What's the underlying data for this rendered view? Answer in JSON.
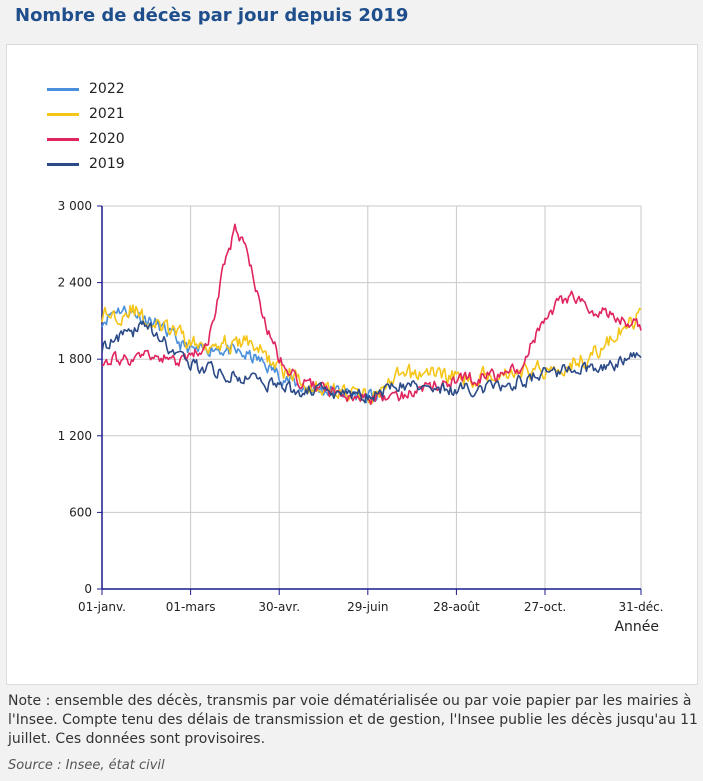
{
  "page": {
    "title": "Nombre de décès par jour depuis 2019",
    "note": "Note : ensemble des décès, transmis par voie dématérialisée ou par voie papier par les mairies à l'Insee. Compte tenu des délais de transmission et de gestion, l'Insee publie les décès jusqu'au 11 juillet. Ces données sont provisoires.",
    "source": "Source : Insee, état civil"
  },
  "colors": {
    "2022": "#4a8fdc",
    "2021": "#f5c518",
    "2020": "#e0245e",
    "2019": "#2b4a87",
    "axis": "#1a1a8c",
    "grid": "#c8c8c8"
  },
  "chart_data": {
    "type": "line",
    "title": "Nombre de décès par jour depuis 2019",
    "xlabel": "Année",
    "ylabel": "",
    "xlim": [
      0,
      365
    ],
    "ylim": [
      0,
      3000
    ],
    "y_ticks": [
      0,
      600,
      1200,
      1800,
      2400,
      3000
    ],
    "y_tick_labels": [
      "0",
      "600",
      "1 200",
      "1 800",
      "2 400",
      "3 000"
    ],
    "x_ticks": [
      0,
      60,
      120,
      180,
      240,
      300,
      365
    ],
    "x_tick_labels": [
      "01-janv.",
      "01-mars",
      "30-avr.",
      "29-juin",
      "28-août",
      "27-oct.",
      "31-déc."
    ],
    "legend": [
      "2022",
      "2021",
      "2020",
      "2019"
    ],
    "series": [
      {
        "name": "2022",
        "noise": 90,
        "start": 0,
        "end": 191,
        "anchors": [
          [
            0,
            2100
          ],
          [
            10,
            2200
          ],
          [
            25,
            2150
          ],
          [
            40,
            2050
          ],
          [
            55,
            1900
          ],
          [
            65,
            1850
          ],
          [
            75,
            1900
          ],
          [
            90,
            1850
          ],
          [
            105,
            1800
          ],
          [
            120,
            1680
          ],
          [
            135,
            1580
          ],
          [
            150,
            1560
          ],
          [
            165,
            1540
          ],
          [
            180,
            1500
          ],
          [
            191,
            1500
          ]
        ]
      },
      {
        "name": "2021",
        "noise": 110,
        "start": 0,
        "end": 365,
        "anchors": [
          [
            0,
            2150
          ],
          [
            10,
            2150
          ],
          [
            20,
            2200
          ],
          [
            30,
            2100
          ],
          [
            50,
            2000
          ],
          [
            65,
            1900
          ],
          [
            80,
            1950
          ],
          [
            90,
            1900
          ],
          [
            100,
            1950
          ],
          [
            115,
            1780
          ],
          [
            125,
            1700
          ],
          [
            140,
            1600
          ],
          [
            160,
            1550
          ],
          [
            175,
            1520
          ],
          [
            190,
            1540
          ],
          [
            200,
            1650
          ],
          [
            210,
            1680
          ],
          [
            220,
            1700
          ],
          [
            235,
            1680
          ],
          [
            245,
            1640
          ],
          [
            260,
            1680
          ],
          [
            275,
            1700
          ],
          [
            290,
            1720
          ],
          [
            300,
            1720
          ],
          [
            320,
            1780
          ],
          [
            335,
            1850
          ],
          [
            345,
            1950
          ],
          [
            355,
            2050
          ],
          [
            365,
            2150
          ]
        ]
      },
      {
        "name": "2020",
        "noise": 80,
        "start": 0,
        "end": 365,
        "anchors": [
          [
            0,
            1800
          ],
          [
            15,
            1800
          ],
          [
            30,
            1820
          ],
          [
            45,
            1800
          ],
          [
            55,
            1780
          ],
          [
            68,
            1870
          ],
          [
            75,
            2050
          ],
          [
            82,
            2500
          ],
          [
            90,
            2800
          ],
          [
            97,
            2700
          ],
          [
            103,
            2400
          ],
          [
            110,
            2100
          ],
          [
            120,
            1800
          ],
          [
            135,
            1620
          ],
          [
            150,
            1560
          ],
          [
            165,
            1520
          ],
          [
            180,
            1500
          ],
          [
            195,
            1500
          ],
          [
            215,
            1560
          ],
          [
            230,
            1600
          ],
          [
            250,
            1650
          ],
          [
            270,
            1680
          ],
          [
            285,
            1750
          ],
          [
            292,
            1950
          ],
          [
            300,
            2100
          ],
          [
            310,
            2250
          ],
          [
            318,
            2300
          ],
          [
            330,
            2200
          ],
          [
            345,
            2150
          ],
          [
            355,
            2100
          ],
          [
            365,
            2050
          ]
        ]
      },
      {
        "name": "2019",
        "noise": 85,
        "start": 0,
        "end": 365,
        "anchors": [
          [
            0,
            1900
          ],
          [
            8,
            1950
          ],
          [
            20,
            2000
          ],
          [
            28,
            2100
          ],
          [
            40,
            1950
          ],
          [
            55,
            1800
          ],
          [
            70,
            1720
          ],
          [
            85,
            1680
          ],
          [
            100,
            1650
          ],
          [
            115,
            1600
          ],
          [
            130,
            1560
          ],
          [
            150,
            1550
          ],
          [
            170,
            1520
          ],
          [
            190,
            1540
          ],
          [
            205,
            1600
          ],
          [
            220,
            1580
          ],
          [
            240,
            1560
          ],
          [
            260,
            1580
          ],
          [
            280,
            1620
          ],
          [
            300,
            1680
          ],
          [
            320,
            1720
          ],
          [
            340,
            1750
          ],
          [
            355,
            1780
          ],
          [
            365,
            1850
          ]
        ]
      }
    ]
  }
}
